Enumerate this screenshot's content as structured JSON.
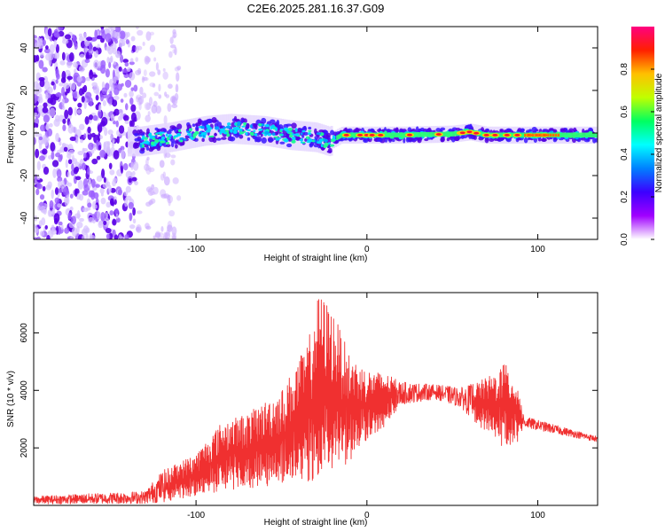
{
  "title": "C2E6.2025.281.16.37.G09",
  "chart_data": [
    {
      "type": "heatmap",
      "name": "spectrogram",
      "xlabel": "Height of straight line (km)",
      "ylabel": "Frequency (Hz)",
      "xlim": [
        -195,
        135
      ],
      "ylim": [
        -50,
        50
      ],
      "xticks": [
        -100,
        0,
        100
      ],
      "yticks": [
        -40,
        -20,
        0,
        20,
        40
      ],
      "colorbar": {
        "label": "Normalized spectral amplitude",
        "range": [
          0,
          1
        ],
        "ticks": [
          "0.0",
          "0.2",
          "0.4",
          "0.6",
          "0.8"
        ],
        "tick_values": [
          0.0,
          0.2,
          0.4,
          0.6,
          0.8
        ],
        "colors": [
          "#ffffff",
          "#a000ff",
          "#3c00ff",
          "#0080ff",
          "#00ffff",
          "#00ff60",
          "#c0ff00",
          "#ffc000",
          "#ff2000",
          "#ff0080"
        ]
      },
      "ridge_center_hz": [
        {
          "x": -133,
          "y": -4
        },
        {
          "x": -115,
          "y": -2
        },
        {
          "x": -95,
          "y": 1
        },
        {
          "x": -80,
          "y": 2
        },
        {
          "x": -60,
          "y": 1
        },
        {
          "x": -45,
          "y": -1
        },
        {
          "x": -30,
          "y": -2
        },
        {
          "x": -22,
          "y": -4
        },
        {
          "x": -15,
          "y": -1
        },
        {
          "x": 0,
          "y": -1
        },
        {
          "x": 20,
          "y": -1
        },
        {
          "x": 50,
          "y": -0.5
        },
        {
          "x": 60,
          "y": 0.5
        },
        {
          "x": 70,
          "y": -1
        },
        {
          "x": 90,
          "y": -1
        },
        {
          "x": 135,
          "y": -1
        }
      ],
      "scatter_region_x": [
        -195,
        -110
      ]
    },
    {
      "type": "line",
      "name": "snr",
      "xlabel": "Height of straight line (km)",
      "ylabel": "SNR (10 * v/v)",
      "xlim": [
        -195,
        135
      ],
      "ylim": [
        0,
        7400
      ],
      "xticks": [
        -100,
        0,
        100
      ],
      "yticks": [
        2000,
        4000,
        6000
      ],
      "color": "#f03030",
      "envelope": [
        {
          "x": -195,
          "lo": 50,
          "hi": 320
        },
        {
          "x": -130,
          "lo": 60,
          "hi": 500
        },
        {
          "x": -120,
          "lo": 100,
          "hi": 1200
        },
        {
          "x": -100,
          "lo": 300,
          "hi": 1800
        },
        {
          "x": -85,
          "lo": 500,
          "hi": 2900
        },
        {
          "x": -70,
          "lo": 600,
          "hi": 3200
        },
        {
          "x": -50,
          "lo": 700,
          "hi": 4000
        },
        {
          "x": -35,
          "lo": 800,
          "hi": 5600
        },
        {
          "x": -28,
          "lo": 900,
          "hi": 7400
        },
        {
          "x": -20,
          "lo": 1100,
          "hi": 6800
        },
        {
          "x": -10,
          "lo": 1500,
          "hi": 5200
        },
        {
          "x": 0,
          "lo": 2300,
          "hi": 4700
        },
        {
          "x": 10,
          "lo": 2700,
          "hi": 4600
        },
        {
          "x": 20,
          "lo": 3500,
          "hi": 4300
        },
        {
          "x": 40,
          "lo": 3700,
          "hi": 4200
        },
        {
          "x": 55,
          "lo": 3400,
          "hi": 4100
        },
        {
          "x": 65,
          "lo": 2800,
          "hi": 4300
        },
        {
          "x": 75,
          "lo": 2300,
          "hi": 4600
        },
        {
          "x": 80,
          "lo": 2000,
          "hi": 5000
        },
        {
          "x": 88,
          "lo": 2200,
          "hi": 4300
        },
        {
          "x": 92,
          "lo": 2700,
          "hi": 3100
        },
        {
          "x": 110,
          "lo": 2500,
          "hi": 2800
        },
        {
          "x": 135,
          "lo": 2200,
          "hi": 2400
        }
      ]
    }
  ]
}
